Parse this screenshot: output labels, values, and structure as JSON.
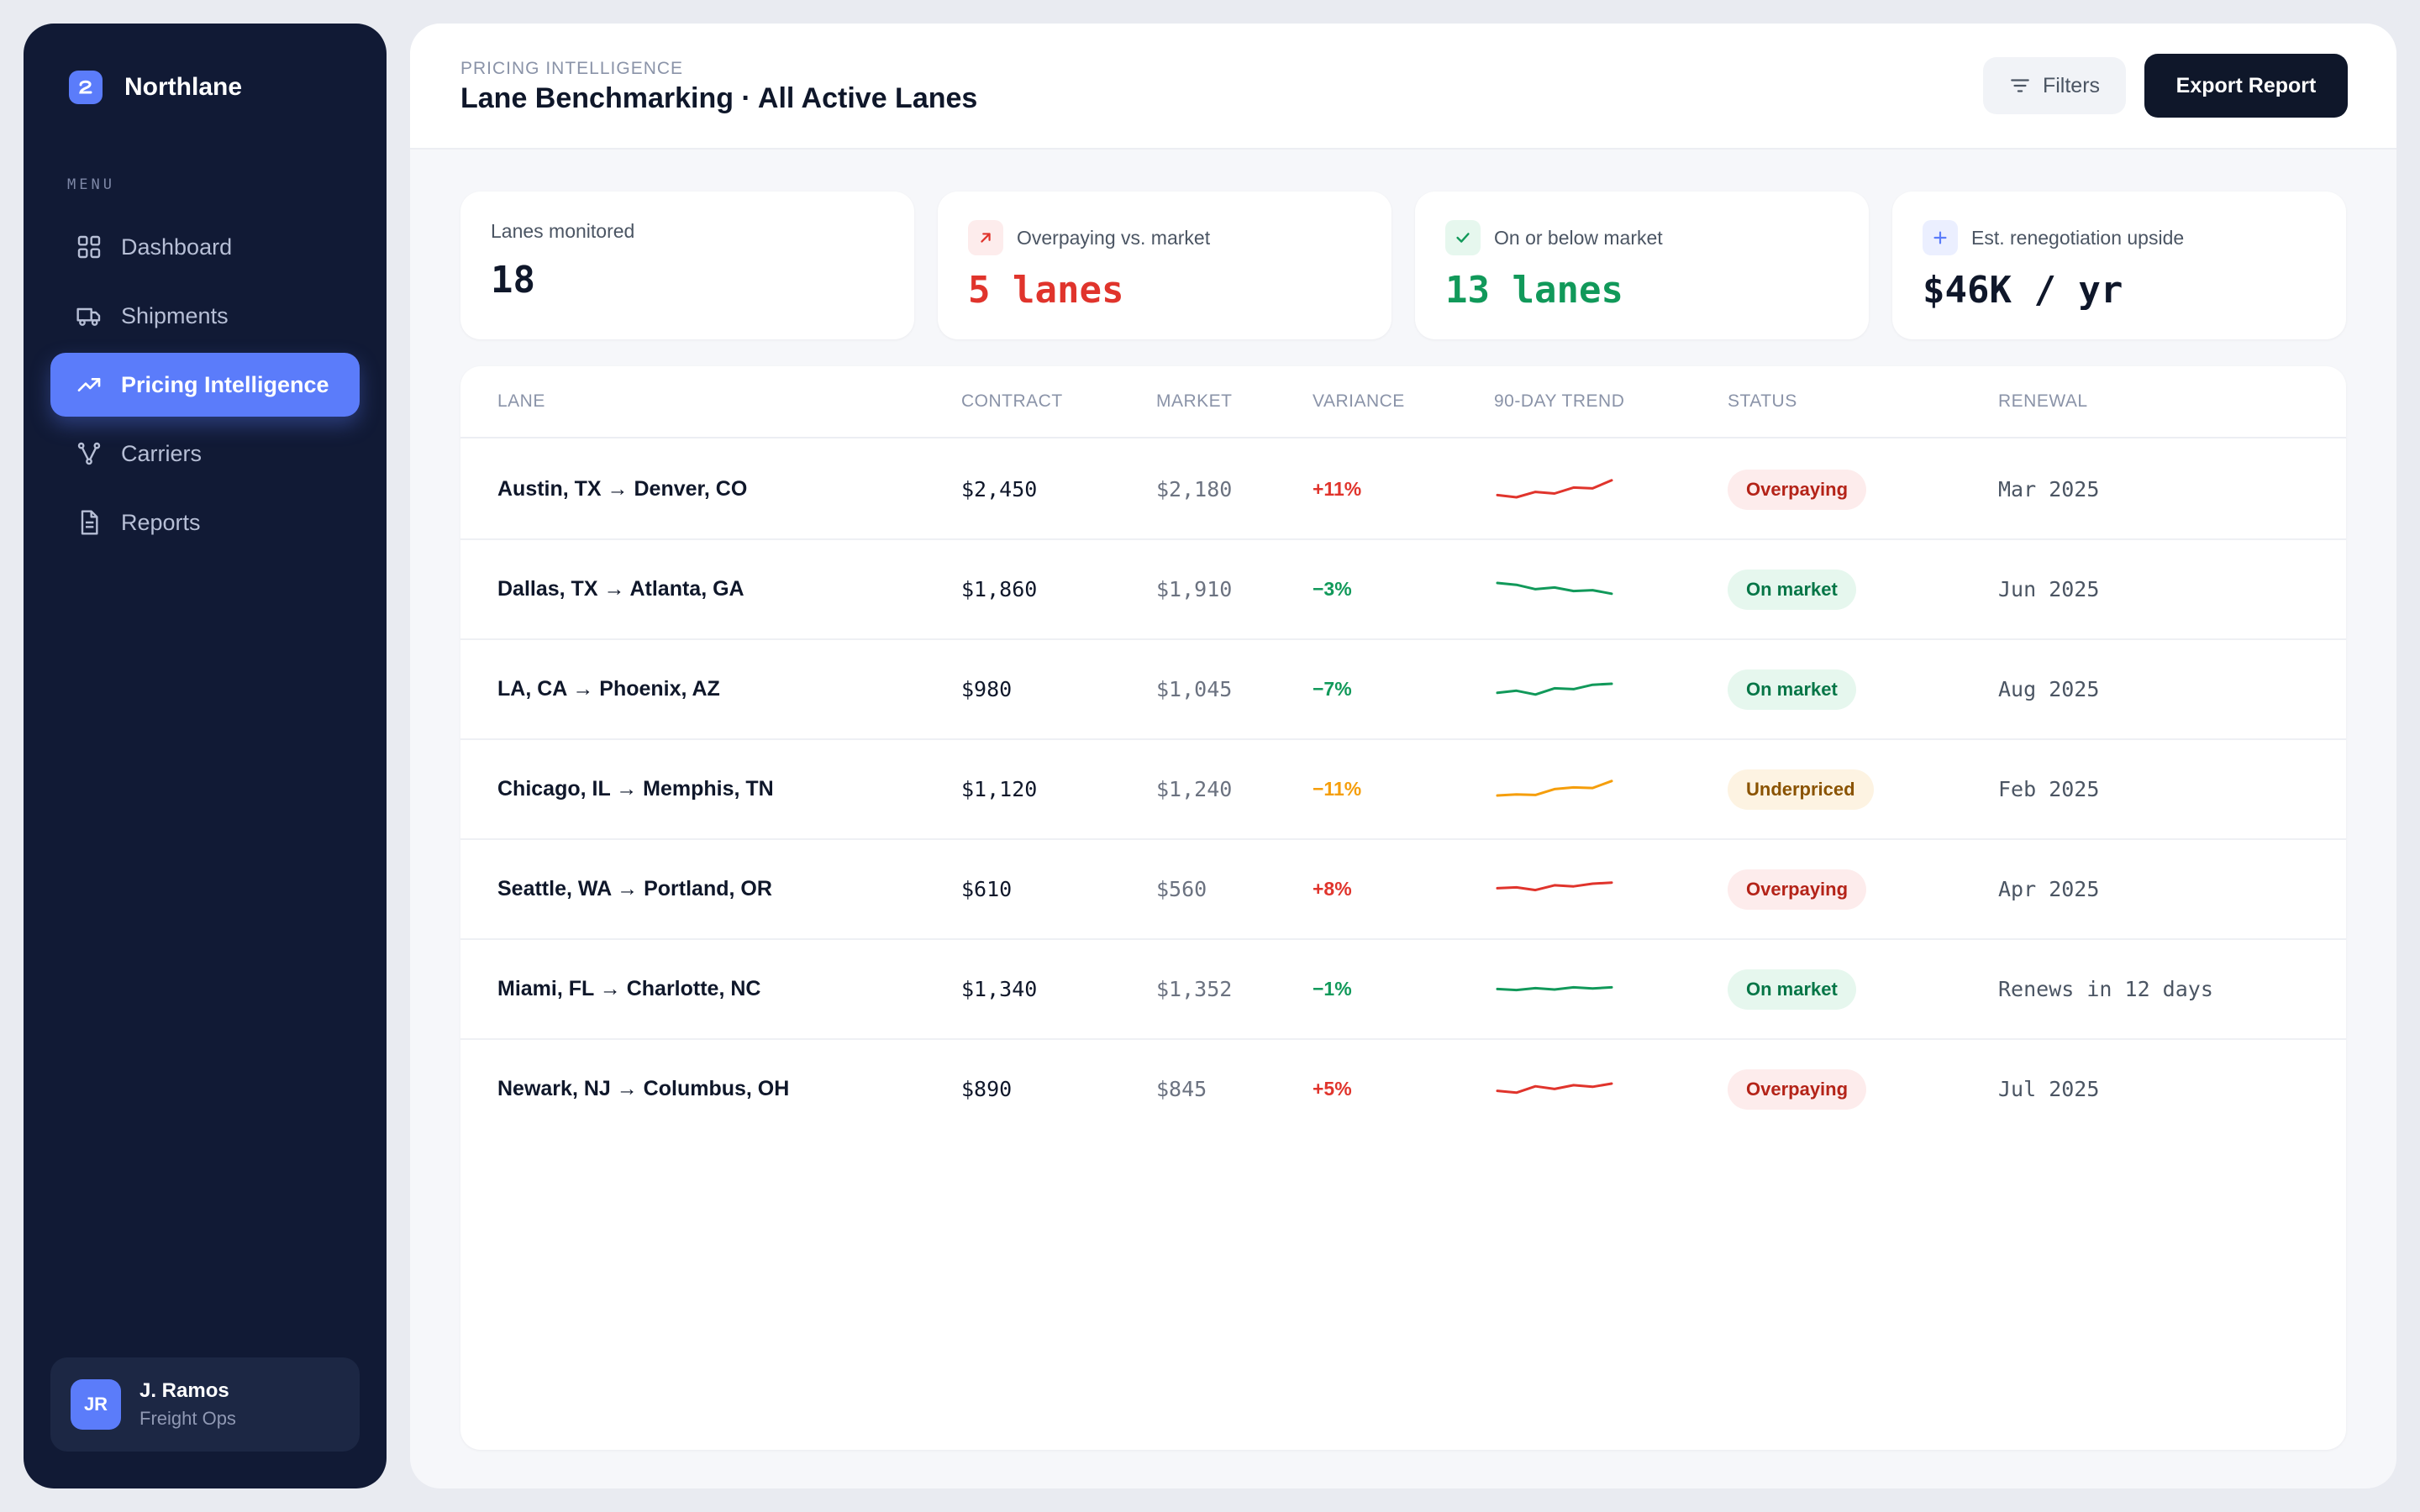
{
  "app": {
    "brand_name": "Northlane",
    "menu_heading": "MENU",
    "nav": [
      {
        "label": "Dashboard",
        "icon": "grid-icon",
        "active": false
      },
      {
        "label": "Shipments",
        "icon": "truck-icon",
        "active": false
      },
      {
        "label": "Pricing Intelligence",
        "icon": "trending-up-icon",
        "active": true
      },
      {
        "label": "Carriers",
        "icon": "network-icon",
        "active": false
      },
      {
        "label": "Reports",
        "icon": "document-icon",
        "active": false
      }
    ],
    "user": {
      "initials": "JR",
      "name": "J. Ramos",
      "role": "Freight Ops"
    }
  },
  "header": {
    "eyebrow": "PRICING INTELLIGENCE",
    "title": "Lane Benchmarking · All Active Lanes",
    "filters_label": "Filters",
    "export_label": "Export Report"
  },
  "kpis": [
    {
      "label": "Lanes monitored",
      "value": "18",
      "icon": null,
      "value_color": "#0f172a"
    },
    {
      "label": "Overpaying vs. market",
      "value": "5 lanes",
      "icon": "arrow-up-right-icon",
      "value_color": "#e0342c"
    },
    {
      "label": "On or below market",
      "value": "13 lanes",
      "icon": "check-icon",
      "value_color": "#11995a"
    },
    {
      "label": "Est. renegotiation upside",
      "value": "$46K / yr",
      "icon": "plus-icon",
      "value_color": "#0f172a"
    }
  ],
  "table": {
    "columns": [
      "LANE",
      "CONTRACT",
      "MARKET",
      "VARIANCE",
      "90-DAY TREND",
      "STATUS",
      "RENEWAL"
    ],
    "rows": [
      {
        "lane": "Austin, TX → Denver, CO",
        "contract": "$2,450",
        "market": "$2,180",
        "variance": "+11%",
        "status": "Overpaying",
        "renewal": "Mar 2025",
        "trend": [
          0.3,
          0.22,
          0.42,
          0.36,
          0.58,
          0.55,
          0.85
        ]
      },
      {
        "lane": "Dallas, TX → Atlanta, GA",
        "contract": "$1,860",
        "market": "$1,910",
        "variance": "−3%",
        "status": "On market",
        "renewal": "Jun 2025",
        "trend": [
          0.75,
          0.68,
          0.52,
          0.58,
          0.45,
          0.48,
          0.35
        ]
      },
      {
        "lane": "LA, CA → Phoenix, AZ",
        "contract": "$980",
        "market": "$1,045",
        "variance": "−7%",
        "status": "On market",
        "renewal": "Aug 2025",
        "trend": [
          0.38,
          0.46,
          0.32,
          0.55,
          0.52,
          0.68,
          0.72
        ]
      },
      {
        "lane": "Chicago, IL → Memphis, TN",
        "contract": "$1,120",
        "market": "$1,240",
        "variance": "−11%",
        "status": "Underpriced",
        "renewal": "Feb 2025",
        "trend": [
          0.28,
          0.32,
          0.3,
          0.52,
          0.58,
          0.56,
          0.82
        ]
      },
      {
        "lane": "Seattle, WA → Portland, OR",
        "contract": "$610",
        "market": "$560",
        "variance": "+8%",
        "status": "Overpaying",
        "renewal": "Apr 2025",
        "trend": [
          0.55,
          0.58,
          0.48,
          0.66,
          0.62,
          0.72,
          0.76
        ]
      },
      {
        "lane": "Miami, FL → Charlotte, NC",
        "contract": "$1,340",
        "market": "$1,352",
        "variance": "−1%",
        "status": "On market",
        "renewal": "Renews in 12 days",
        "trend": [
          0.52,
          0.48,
          0.55,
          0.5,
          0.58,
          0.54,
          0.58
        ]
      },
      {
        "lane": "Newark, NJ → Columbus, OH",
        "contract": "$890",
        "market": "$845",
        "variance": "+5%",
        "status": "Overpaying",
        "renewal": "Jul 2025",
        "trend": [
          0.45,
          0.38,
          0.62,
          0.52,
          0.66,
          0.6,
          0.72
        ]
      }
    ]
  },
  "colors": {
    "sidebar_bg": "#111a35",
    "accent": "#5b7cfa",
    "red": "#e0342c",
    "green": "#11995a",
    "amber": "#f59e0b"
  }
}
